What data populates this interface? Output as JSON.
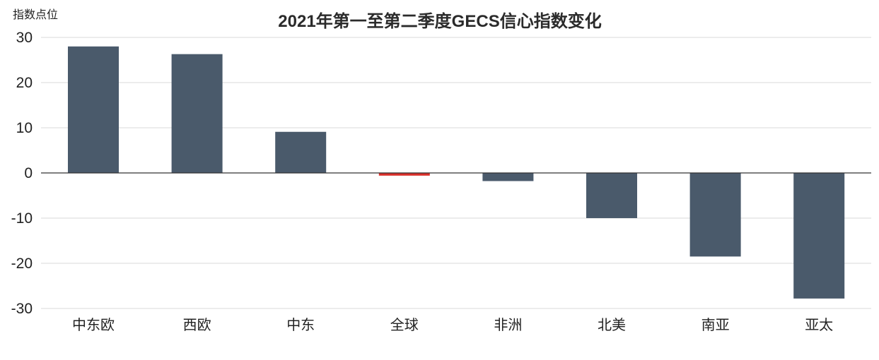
{
  "chart_data": {
    "type": "bar",
    "title": "2021年第一至第二季度GECS信心指数变化",
    "ylabel": "指数点位",
    "xlabel": "",
    "categories": [
      "中东欧",
      "西欧",
      "中东",
      "全球",
      "非洲",
      "北美",
      "南亚",
      "亚太"
    ],
    "values": [
      28,
      26.3,
      9.1,
      -0.6,
      -1.8,
      -10,
      -18.5,
      -27.8
    ],
    "ylim": [
      -30,
      30
    ],
    "yticks": [
      30,
      20,
      10,
      0,
      -10,
      -20,
      -30
    ],
    "grid": true,
    "legend": "none",
    "colors": {
      "bar": "#4a5a6b",
      "highlight": "#d9302b",
      "highlight_category": "全球"
    }
  }
}
